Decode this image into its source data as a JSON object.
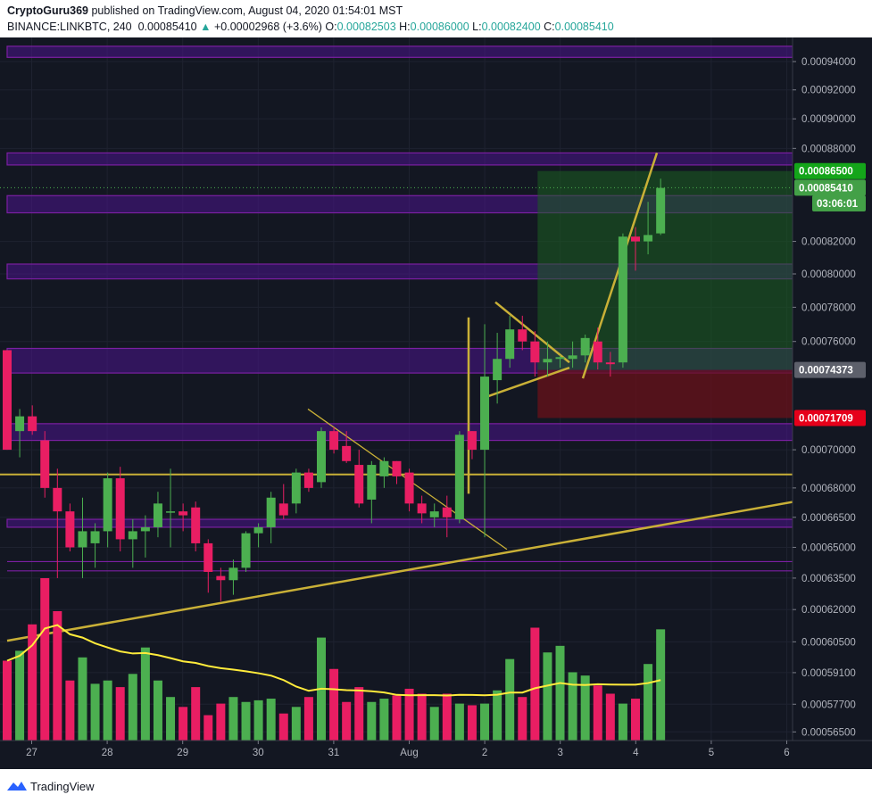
{
  "header": {
    "author": "CryptoGuru369",
    "published_text": "published on TradingView.com, August 04, 2020 01:54:01 MST",
    "symbol": "BINANCE:LINKBTC, 240",
    "last": "0.00085410",
    "change": "+0.00002968 (+3.6%)",
    "open_label": "O:",
    "open": "0.00082503",
    "high_label": "H:",
    "high": "0.00086000",
    "low_label": "L:",
    "low": "0.00082400",
    "close_label": "C:",
    "close": "0.00085410"
  },
  "footer": {
    "brand": "TradingView",
    "logo_icon": "tradingview-logo-icon"
  },
  "colors": {
    "background": "#131722",
    "bull": "#4caf50",
    "bear": "#e91e63",
    "zone": "#4a148c",
    "zone_border": "#7b1fa2",
    "trendline": "#c9b037",
    "ma": "#ffeb3b",
    "target": "#1b5e20",
    "stop": "#6a1119"
  },
  "chart_data": {
    "type": "candlestick",
    "ylim": [
      0.000557,
      0.000952
    ],
    "y_ticks": [
      "0.00094000",
      "0.00092000",
      "0.00090000",
      "0.00088000",
      "0.00082000",
      "0.00080000",
      "0.00078000",
      "0.00076000",
      "0.00070000",
      "0.00068000",
      "0.00066500",
      "0.00065000",
      "0.00063500",
      "0.00062000",
      "0.00060500",
      "0.00059100",
      "0.00057700",
      "0.00056500"
    ],
    "price_tags": [
      {
        "label": "0.00086500",
        "value": 0.000865,
        "color": "#14a51a"
      },
      {
        "label": "0.00085410",
        "value": 0.0008541,
        "color": "#43a047"
      },
      {
        "label": "03:06:01",
        "value": 0.000844,
        "color": "#43a047"
      },
      {
        "label": "0.00074373",
        "value": 0.00074373,
        "color": "#5d606b"
      },
      {
        "label": "0.00071709",
        "value": 0.00071709,
        "color": "#e6001a"
      }
    ],
    "x_labels": [
      "27",
      "28",
      "29",
      "30",
      "31",
      "Aug",
      "2",
      "3",
      "4",
      "5",
      "6"
    ],
    "candles": [
      {
        "o": 0.000755,
        "h": 0.000755,
        "l": 0.0007,
        "c": 0.0007
      },
      {
        "o": 0.00071,
        "h": 0.000722,
        "l": 0.000696,
        "c": 0.000718
      },
      {
        "o": 0.000718,
        "h": 0.000724,
        "l": 0.000708,
        "c": 0.00071
      },
      {
        "o": 0.000705,
        "h": 0.00071,
        "l": 0.000675,
        "c": 0.00068
      },
      {
        "o": 0.00068,
        "h": 0.00069,
        "l": 0.000635,
        "c": 0.000668
      },
      {
        "o": 0.000668,
        "h": 0.000672,
        "l": 0.000648,
        "c": 0.00065
      },
      {
        "o": 0.00065,
        "h": 0.000675,
        "l": 0.000635,
        "c": 0.000658
      },
      {
        "o": 0.000652,
        "h": 0.000662,
        "l": 0.00064,
        "c": 0.000658
      },
      {
        "o": 0.000658,
        "h": 0.000688,
        "l": 0.00065,
        "c": 0.000685
      },
      {
        "o": 0.000685,
        "h": 0.000691,
        "l": 0.000648,
        "c": 0.000654
      },
      {
        "o": 0.000654,
        "h": 0.000664,
        "l": 0.00064,
        "c": 0.000658
      },
      {
        "o": 0.000658,
        "h": 0.000666,
        "l": 0.000645,
        "c": 0.00066
      },
      {
        "o": 0.00066,
        "h": 0.000678,
        "l": 0.000655,
        "c": 0.000672
      },
      {
        "o": 0.000668,
        "h": 0.00069,
        "l": 0.00065,
        "c": 0.000668
      },
      {
        "o": 0.000668,
        "h": 0.000672,
        "l": 0.000658,
        "c": 0.000666
      },
      {
        "o": 0.00067,
        "h": 0.000673,
        "l": 0.000648,
        "c": 0.000652
      },
      {
        "o": 0.000652,
        "h": 0.000654,
        "l": 0.000628,
        "c": 0.000638
      },
      {
        "o": 0.000636,
        "h": 0.00064,
        "l": 0.000624,
        "c": 0.000634
      },
      {
        "o": 0.000634,
        "h": 0.000644,
        "l": 0.000627,
        "c": 0.00064
      },
      {
        "o": 0.00064,
        "h": 0.000658,
        "l": 0.000638,
        "c": 0.000657
      },
      {
        "o": 0.000657,
        "h": 0.000662,
        "l": 0.00065,
        "c": 0.00066
      },
      {
        "o": 0.00066,
        "h": 0.000678,
        "l": 0.000652,
        "c": 0.000675
      },
      {
        "o": 0.000672,
        "h": 0.000682,
        "l": 0.000664,
        "c": 0.000666
      },
      {
        "o": 0.000672,
        "h": 0.00069,
        "l": 0.000667,
        "c": 0.000688
      },
      {
        "o": 0.000688,
        "h": 0.00069,
        "l": 0.000678,
        "c": 0.00068
      },
      {
        "o": 0.000683,
        "h": 0.000712,
        "l": 0.00068,
        "c": 0.00071
      },
      {
        "o": 0.00071,
        "h": 0.000712,
        "l": 0.000698,
        "c": 0.0007
      },
      {
        "o": 0.000702,
        "h": 0.00071,
        "l": 0.000693,
        "c": 0.000694
      },
      {
        "o": 0.000692,
        "h": 0.0007,
        "l": 0.00067,
        "c": 0.000672
      },
      {
        "o": 0.000674,
        "h": 0.000694,
        "l": 0.000662,
        "c": 0.000692
      },
      {
        "o": 0.000686,
        "h": 0.000696,
        "l": 0.00068,
        "c": 0.000694
      },
      {
        "o": 0.000694,
        "h": 0.000694,
        "l": 0.000682,
        "c": 0.000686
      },
      {
        "o": 0.000688,
        "h": 0.00069,
        "l": 0.000668,
        "c": 0.000672
      },
      {
        "o": 0.000672,
        "h": 0.000676,
        "l": 0.000662,
        "c": 0.000667
      },
      {
        "o": 0.000665,
        "h": 0.000672,
        "l": 0.00066,
        "c": 0.000668
      },
      {
        "o": 0.00067,
        "h": 0.000676,
        "l": 0.000655,
        "c": 0.000665
      },
      {
        "o": 0.000664,
        "h": 0.00071,
        "l": 0.000662,
        "c": 0.000708
      },
      {
        "o": 0.00071,
        "h": 0.00071,
        "l": 0.000695,
        "c": 0.0007
      },
      {
        "o": 0.0007,
        "h": 0.00077,
        "l": 0.000655,
        "c": 0.00074
      },
      {
        "o": 0.000738,
        "h": 0.000765,
        "l": 0.000725,
        "c": 0.00075
      },
      {
        "o": 0.00075,
        "h": 0.000775,
        "l": 0.000745,
        "c": 0.000767
      },
      {
        "o": 0.000767,
        "h": 0.000775,
        "l": 0.000755,
        "c": 0.00076
      },
      {
        "o": 0.00076,
        "h": 0.000766,
        "l": 0.00074,
        "c": 0.000748
      },
      {
        "o": 0.000748,
        "h": 0.00076,
        "l": 0.00074,
        "c": 0.00075
      },
      {
        "o": 0.00075,
        "h": 0.000752,
        "l": 0.000745,
        "c": 0.000751
      },
      {
        "o": 0.00075,
        "h": 0.00076,
        "l": 0.000745,
        "c": 0.000752
      },
      {
        "o": 0.000752,
        "h": 0.000764,
        "l": 0.000748,
        "c": 0.000762
      },
      {
        "o": 0.00076,
        "h": 0.000768,
        "l": 0.000744,
        "c": 0.000748
      },
      {
        "o": 0.000748,
        "h": 0.000754,
        "l": 0.00074,
        "c": 0.000747
      },
      {
        "o": 0.000748,
        "h": 0.000825,
        "l": 0.000745,
        "c": 0.000823
      },
      {
        "o": 0.000823,
        "h": 0.000829,
        "l": 0.000802,
        "c": 0.00082
      },
      {
        "o": 0.00082,
        "h": 0.000845,
        "l": 0.000812,
        "c": 0.000824
      },
      {
        "o": 0.000825,
        "h": 0.00086,
        "l": 0.000824,
        "c": 0.000854
      }
    ],
    "volume": [
      50,
      56,
      72,
      100,
      80,
      38,
      52,
      36,
      38,
      34,
      42,
      58,
      38,
      28,
      22,
      34,
      17,
      24,
      28,
      25,
      26,
      27,
      18,
      22,
      28,
      64,
      45,
      25,
      34,
      25,
      27,
      29,
      33,
      30,
      22,
      30,
      24,
      23,
      24,
      32,
      51,
      28,
      70,
      55,
      59,
      43,
      41,
      35,
      30,
      24,
      27,
      48,
      69
    ]
  }
}
